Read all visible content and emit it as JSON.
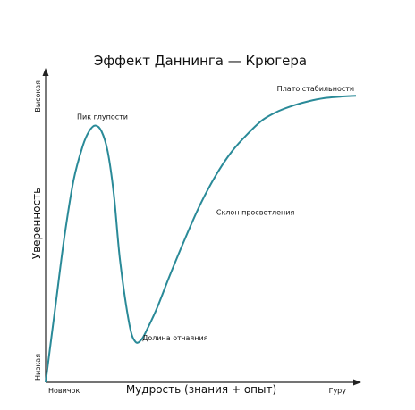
{
  "chart_data": {
    "type": "line",
    "title": "Эффект Даннинга — Крюгера",
    "xlabel": "Мудрость (знания + опыт)",
    "ylabel": "Уверенность",
    "x_tick_labels": [
      "Новичок",
      "Гуру"
    ],
    "y_tick_labels": [
      "Низкая",
      "Высокая"
    ],
    "xlim": [
      0,
      100
    ],
    "ylim": [
      0,
      100
    ],
    "grid": false,
    "color": "#2a8a98",
    "series": [
      {
        "x": [
          0,
          3,
          6,
          9,
          12,
          14,
          16,
          18,
          20,
          22,
          24,
          27,
          29,
          31,
          33,
          36,
          40,
          45,
          50,
          55,
          60,
          65,
          70,
          75,
          80,
          85,
          90,
          95,
          100
        ],
        "y": [
          0,
          25,
          50,
          70,
          82,
          87,
          89,
          87,
          80,
          65,
          42,
          20,
          14,
          15,
          19,
          26,
          37,
          50,
          62,
          72,
          80,
          86,
          91,
          94,
          96,
          97.5,
          98.5,
          99,
          99.3
        ]
      }
    ],
    "annotations": [
      {
        "text": "Пик глупости",
        "x": 16,
        "y": 89
      },
      {
        "text": "Долина отчаяния",
        "x": 30,
        "y": 14
      },
      {
        "text": "Склон просветления",
        "x": 55,
        "y": 58
      },
      {
        "text": "Плато стабильности",
        "x": 87,
        "y": 99
      }
    ]
  }
}
